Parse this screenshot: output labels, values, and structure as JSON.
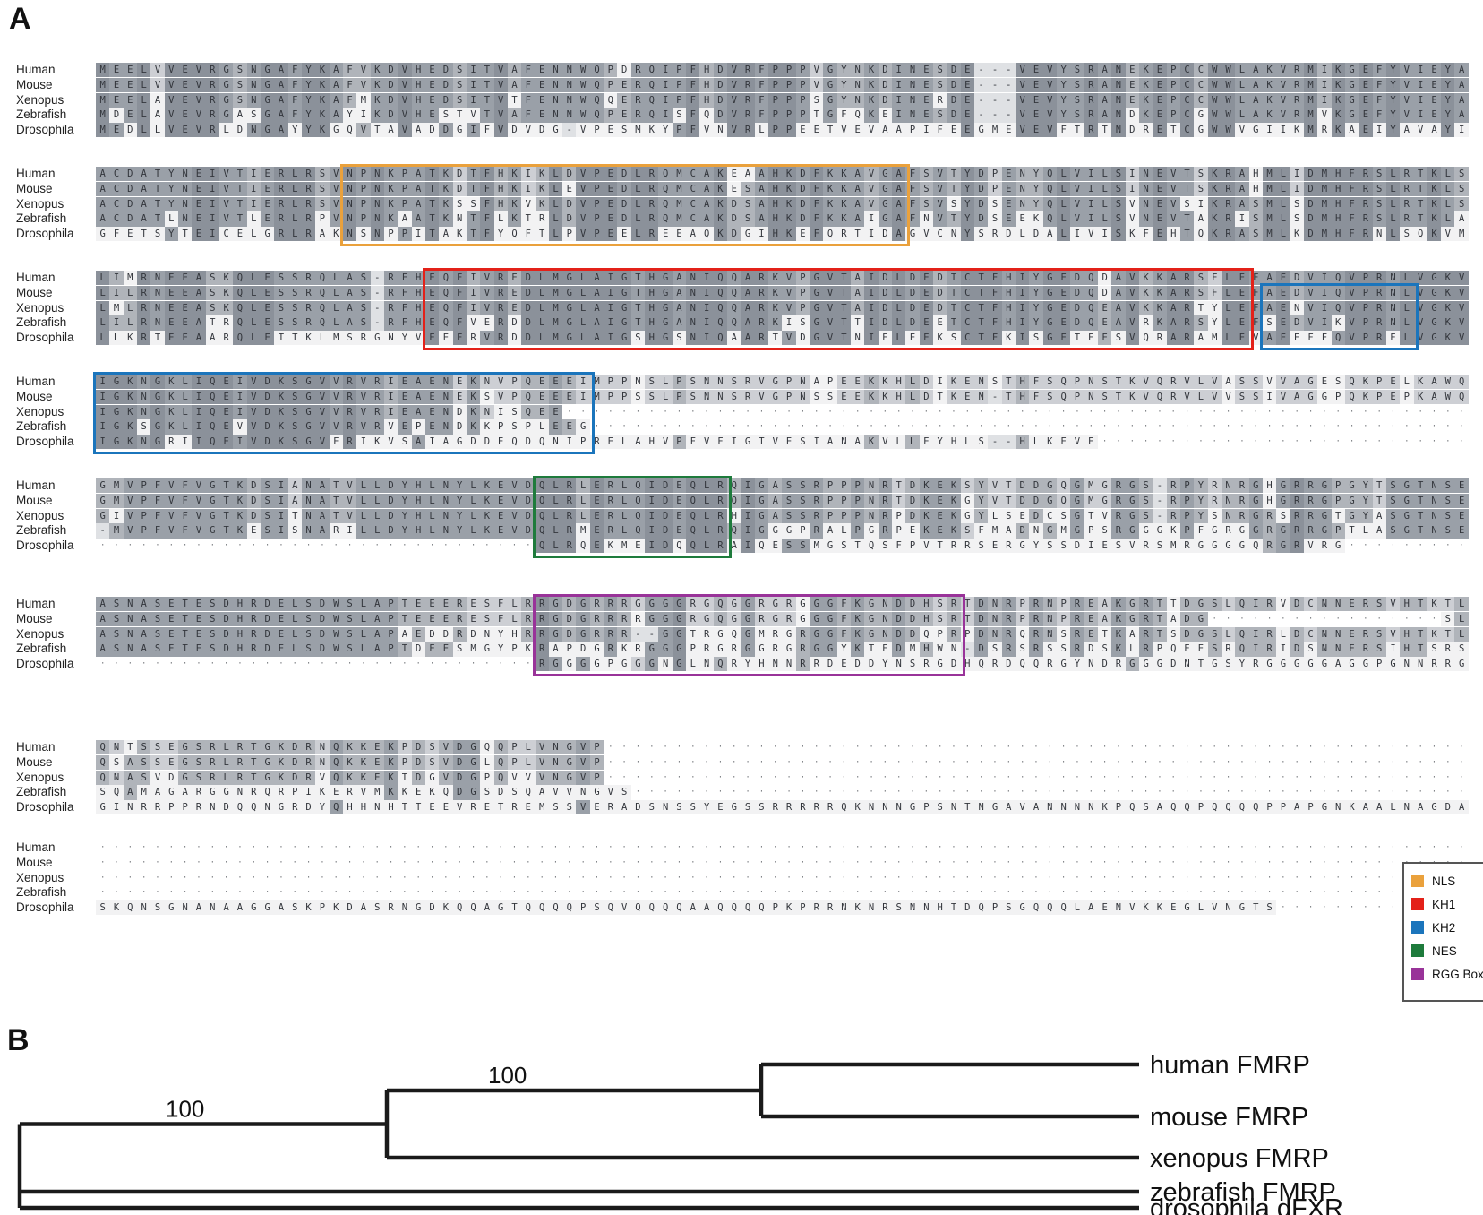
{
  "panel_a": "A",
  "panel_b": "B",
  "species": [
    "Human",
    "Mouse",
    "Xenopus",
    "Zebrafish",
    "Drosophila"
  ],
  "alignment_blocks": [
    {
      "sequences": [
        "MEELVVEVRGSNGAFYKAFVKDVHEDSITVAFENNWQPDRQIPFHDVRFPPPVGYNKDINESDE---VEVYSRANEKEPCCWWLAKVRMIKGEFYVIEYA",
        "MEELVVEVRGSNGAFYKAFVKDVHEDSITVAFENNWQPERQIPFHDVRFPPPVGYNKDINESDE---VEVYSRANEKEPCCWWLAKVRMIKGEFYVIEYA",
        "MEELAVEVRGSNGAFYKAFMKDVHEDSITVTFENNWQQERQIPFHDVRFPPPSGYNKDINERDE---VEVYSRANEKEPCCWWLAKVRMIKGEFYVIEYA",
        "MDELAVEVRGASGAFYKAYIKDVHESTVTVAFENNWQPERQISFQDVRFPPPTGFQKEINESDE---VEVYSRANDKEPCGWWLAKVRMVKGEFYVIEYA",
        "MEDLLVEVRLDNGAYYKGQVTAVADDGIFVDVDG-VPESMKYPFVNVRLPPEETVEVAAPIFEEGMEVEVFTRTNDRETCGWWVGIIKMRKAEIYAVAYI"
      ]
    },
    {
      "sequences": [
        "ACDATYNEIVTIERLRSVNPNKPATKDTFHKIKLDVPEDLRQMCAKEAAHKDFKKAVGAFSVTYDPENYQLVILSINEVTSKRAHMLIDMHFRSLRTKLS",
        "ACDATYNEIVTIERLRSVNPNKPATKDTFHKIKLEVPEDLRQMCAKESAHKDFKKAVGAFSVTYDPENYQLVILSINEVTSKRAHMLIDMHFRSLRTKLS",
        "ACDATYNEIVTIERLRSVNPNKPATKSSFHKVKLDVPEDLRQMCAKDSAHKDFKKAVGAFSVSYDSENYQLVILSVNEVSIKRASMLSDMHFRSLRTKLS",
        "ACDATLNEIVTLERLRPVNPNKAATKNTFLKTRLDVPEDLRQMCAKDSAHKDFKKAIGAFNVTYDSEEKQLVILSVNEVTAKRISMLSDMHFRSLRTKLA",
        "GFETSYTEICELGRLRAKNSNPPITAKTFYQFTLPVPEELREEAQKDGIHKEFQRTIDAGVCNYSRDLDALIVISKFEHTQKRASMLKDMHFRNLSQKVM"
      ]
    },
    {
      "sequences": [
        "LIMRNEEASKQLESSRQLAS-RFHEQFIVREDLMGLAIGTHGANIQQARKVPGVTAIDLDEDTCTFHIYGEDQDAVKKARSFLEFAEDVIQVPRNLVGKV",
        "LILRNEEASKQLESSRQLAS-RFHEQFIVREDLMGLAIGTHGANIQQARKVPGVTAIDLDEDTCTFHIYGEDQDAVKKARSFLEFAEDVIQVPRNLVGKV",
        "LMLRNEEASKQLESSRQLAS-RFHEQFIVREDLMGLAIGTHGANIQQARKVPGVTAIDLDEDTCTFHIYGEDQEAVKKARTYLEFAENVIQVPRNLVGKV",
        "LILRNEEATRQLESSRQLAS-RFHEQFVERDDLMGLAIGTHGANIQQARKISGVTTIDLDEETCTFHIYGEDQEAVRKARSYLEFSEDVIKVPRNLVGKV",
        "LLKRTEEAARQLETTKLMSRGNYVEEFRVRDDLMGLAIGSHGSNIQAARTVDGVTNIELEEKSCTFKISGETEESVQRARAMLEVAEEFFQVPRELVGKV"
      ]
    },
    {
      "sequences": [
        "IGKNGKLIQEIVDKSGVVRVRIEAENEKNVPQEEEIMPPNSLPSNNSRVGPNAPEEKKHLDIKENSTHFSQPNSTKVQRVLVASSVVAGESQKPELKAWQ",
        "IGKNGKLIQEIVDKSGVVRVRIEAENEKSVPQEEEIMPPSSLPSNNSRVGPNSSEEKKHLDTKEN-THFSQPNSTKVQRVLVVSSIVAGGPQKPEPKAWQ",
        "IGKNGKLIQEIVDKSGVVRVRIEAENDKNISQEE..................................................................",
        "IGKSGKLIQEVVDKSGVVRVRVEPENDKKPSPLEEG................................................................",
        "IGKNGRIIQEIVDKSGVFRIKVSAIAGDDEQDQNIPRELAHVPFVFIGTVESIANAKVLLEYHLS--HLKEVE..........................."
      ]
    },
    {
      "sequences": [
        "GMVPFVFVGTKDSIANATVLLDYHLNYLKEVDQLRLERLQIDEQLRQIGASSRPPPNRTDKEKSYVTDDGQGMGRGS-RPYRNRGHGRRGPGYTSGTNSE",
        "GMVPFVFVGTKDSIANATVLLDYHLNYLKEVDQLRLERLQIDEQLRQIGASSRPPPNRTDKEKGYVTDDGQGMGRGS-RPYRNRGHGRRGPGYTSGTNSE",
        "GIVPFVFVGTKDSITNATVLLDYHLNYLKEVDQLRLERLQIDEQLRHIGASSRPPPNRPDKEKGYLSEDCSGTVRGS-RPYSNRGRSRRGTGYASGTNSE",
        "-MVPFVFVGTKESISNARILLDYHLNYLKEVDQLRMERLQIDEQLRQIGGGPRALPGRPEKEKSFMADNGMGPSRGGGKPFGRGGRGRRGPTLASGTNSE",
        "................................QLRQEKMEIDQQLRAIQESSMGSTQSFPVTRRSERGYSSDIESVRSMRGGGGQRGRVRG........."
      ]
    },
    {
      "sequences": [
        "ASNASETESDHRDELSDWSLAPTEEERESFLRRGDGRRRGGGGRGQGGRGRGGGFKGNDDHSRTDNRPRNPREAKGRTTDGSLQIRVDCNNERSVHTKTL",
        "ASNASETESDHRDELSDWSLAPTEEERESFLRRGDGRRRRGGGRGQGGRGRGGGFKGNDDHSRTDNRPRNPREAKGRTADG.................SL",
        "ASNASETESDHRDELSDWSLAPAEDDRDNYHRRGDGRRR--GGTRGQGMRGRGGFKGNDDQPRPDNRQRNSRETKARTSDGSLQIRLDCNNERSVHTKTL",
        "ASNASETESDHRDELSDWSLAPTDEESMGYPKRAPDGRKRGGGPRGRGGRGRGGYKTEDMHWN-DSRSRSSRDSKLRPQEESRQIRIDSNNERSIHTSRS",
        "................................RGGGGPGGGNGLNQRYHNNRRDEDDYNSRGDHQRDQQRGYNDRGGGDNTGSYRGGGGGAGGPGNNRRG"
      ]
    },
    {
      "sequences": [
        "QNTSSEGSRLRTGKDRNQKKEKPDSVDGQQPLVNGVP...............................................................",
        "QSASSEGSRLRTGKDRNQKKEKPDSVDGLQPLVNGVP...............................................................",
        "QNASVDGSRLRTGKDRVQKKEKTDGVDGPQVVVNGVP...............................................................",
        "SQAMAGARGGNRQRPIKERVMKKEKQDGSDSQAVVNGVS.............................................................",
        "GINRRPPRNDQQNGRDYQHHNHTTEEVRETREMSSVERADSNSSYEGSSRRRRRQKNNNGPSNTNGAVANNNNKPQSAQQPQQQQPPAPGNKAALNAGDA"
      ]
    },
    {
      "sequences": [
        "....................................................................................................",
        "....................................................................................................",
        "....................................................................................................",
        "....................................................................................................",
        "SKQNSGNANAAGGASKPKDASRNGDKQQAGTQQQQPSQVQQQQAAQQQQPKPRRNKNRSNNHTDQPSGQQQLAENVKKEGLVNGTS.............."
      ]
    }
  ],
  "domains": [
    {
      "name": "NLS",
      "color": "#EAA13C",
      "block": 1,
      "col_start": 18,
      "col_end": 58,
      "row_start": 0,
      "row_end": 4
    },
    {
      "name": "KH1",
      "color": "#E32119",
      "block": 2,
      "col_start": 24,
      "col_end": 83,
      "row_start": 0,
      "row_end": 4
    },
    {
      "name": "KH2",
      "color": "#1B75BC",
      "block": 2,
      "col_start": 85,
      "col_end": 95,
      "row_start": 1,
      "row_end": 4
    },
    {
      "name": "KH2",
      "color": "#1B75BC",
      "block": 3,
      "col_start": 0,
      "col_end": 35,
      "row_start": 0,
      "row_end": 4
    },
    {
      "name": "NES",
      "color": "#1E7B3C",
      "block": 4,
      "col_start": 32,
      "col_end": 45,
      "row_start": 0,
      "row_end": 4
    },
    {
      "name": "RGG Box",
      "color": "#993399",
      "block": 5,
      "col_start": 32,
      "col_end": 62,
      "row_start": 0,
      "row_end": 4
    }
  ],
  "legend": {
    "items": [
      {
        "label": "NLS",
        "color": "#EAA13C"
      },
      {
        "label": "KH1",
        "color": "#E32119"
      },
      {
        "label": "KH2",
        "color": "#1B75BC"
      },
      {
        "label": "NES",
        "color": "#1E7B3C"
      },
      {
        "label": "RGG Box",
        "color": "#993399"
      }
    ]
  },
  "tree": {
    "taxa": [
      "human FMRP",
      "mouse FMRP",
      "xenopus FMRP",
      "zebrafish FMRP",
      "drosophila dFXR"
    ],
    "bootstrap_values": [
      "100",
      "100"
    ]
  }
}
